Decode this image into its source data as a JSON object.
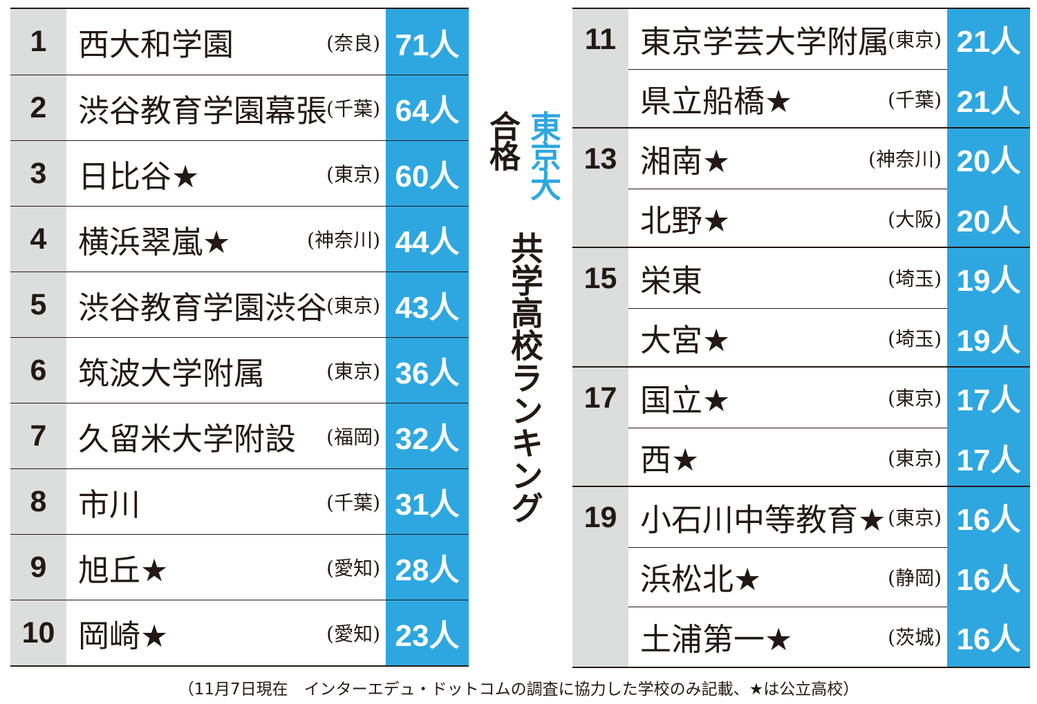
{
  "title": {
    "line1": "東京大",
    "line2": "合格",
    "line3": "共学高校ランキング"
  },
  "colors": {
    "accent_blue": "#2ea7e0",
    "rank_gray": "#dcdddd",
    "text": "#231815"
  },
  "left_rows": [
    {
      "rank": "1",
      "name": "西大和学園",
      "pref": "(奈良)",
      "count": "71人"
    },
    {
      "rank": "2",
      "name": "渋谷教育学園幕張",
      "pref": "(千葉)",
      "count": "64人"
    },
    {
      "rank": "3",
      "name": "日比谷★",
      "pref": "(東京)",
      "count": "60人"
    },
    {
      "rank": "4",
      "name": "横浜翠嵐★",
      "pref": "(神奈川)",
      "count": "44人"
    },
    {
      "rank": "5",
      "name": "渋谷教育学園渋谷",
      "pref": "(東京)",
      "count": "43人"
    },
    {
      "rank": "6",
      "name": "筑波大学附属",
      "pref": "(東京)",
      "count": "36人"
    },
    {
      "rank": "7",
      "name": "久留米大学附設",
      "pref": "(福岡)",
      "count": "32人"
    },
    {
      "rank": "8",
      "name": "市川",
      "pref": "(千葉)",
      "count": "31人"
    },
    {
      "rank": "9",
      "name": "旭丘★",
      "pref": "(愛知)",
      "count": "28人"
    },
    {
      "rank": "10",
      "name": "岡崎★",
      "pref": "(愛知)",
      "count": "23人"
    }
  ],
  "right_rows": [
    {
      "rank": "11",
      "name": "東京学芸大学附属",
      "pref": "(東京)",
      "count": "21人"
    },
    {
      "rank": "",
      "name": "県立船橋★",
      "pref": "(千葉)",
      "count": "21人"
    },
    {
      "rank": "13",
      "name": "湘南★",
      "pref": "(神奈川)",
      "count": "20人"
    },
    {
      "rank": "",
      "name": "北野★",
      "pref": "(大阪)",
      "count": "20人"
    },
    {
      "rank": "15",
      "name": "栄東",
      "pref": "(埼玉)",
      "count": "19人"
    },
    {
      "rank": "",
      "name": "大宮★",
      "pref": "(埼玉)",
      "count": "19人"
    },
    {
      "rank": "17",
      "name": "国立★",
      "pref": "(東京)",
      "count": "17人"
    },
    {
      "rank": "",
      "name": "西★",
      "pref": "(東京)",
      "count": "17人"
    },
    {
      "rank": "19",
      "name": "小石川中等教育★",
      "pref": "(東京)",
      "count": "16人"
    },
    {
      "rank": "",
      "name": "浜松北★",
      "pref": "(静岡)",
      "count": "16人"
    },
    {
      "rank": "",
      "name": "土浦第一★",
      "pref": "(茨城)",
      "count": "16人"
    }
  ],
  "footnote": "（11月7日現在　インターエデュ・ドットコムの調査に協力した学校のみ記載、★は公立高校）"
}
